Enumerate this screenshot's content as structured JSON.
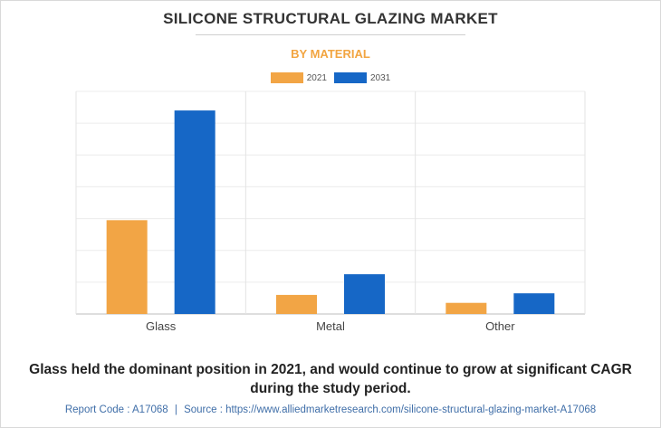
{
  "header": {
    "title": "SILICONE STRUCTURAL GLAZING MARKET",
    "subtitle": "BY MATERIAL"
  },
  "colors": {
    "series_2021": "#f2a545",
    "series_2031": "#1667c6",
    "subtitle": "#f2a541",
    "footer": "#3f6ea8"
  },
  "chart_data": {
    "type": "bar",
    "categories": [
      "Glass",
      "Metal",
      "Other"
    ],
    "series": [
      {
        "name": "2021",
        "values": [
          29.5,
          6.0,
          3.5
        ]
      },
      {
        "name": "2031",
        "values": [
          64.0,
          12.5,
          6.5
        ]
      }
    ],
    "ylim": [
      0,
      70
    ],
    "grid": true,
    "legend_position": "top-center",
    "title": "SILICONE STRUCTURAL GLAZING MARKET",
    "subtitle": "BY MATERIAL"
  },
  "caption": "Glass held the dominant position in 2021, and would continue to grow at significant CAGR during the study period.",
  "footer": {
    "report_code": "Report Code : A17068",
    "separator": "|",
    "source": "Source : https://www.alliedmarketresearch.com/silicone-structural-glazing-market-A17068"
  }
}
